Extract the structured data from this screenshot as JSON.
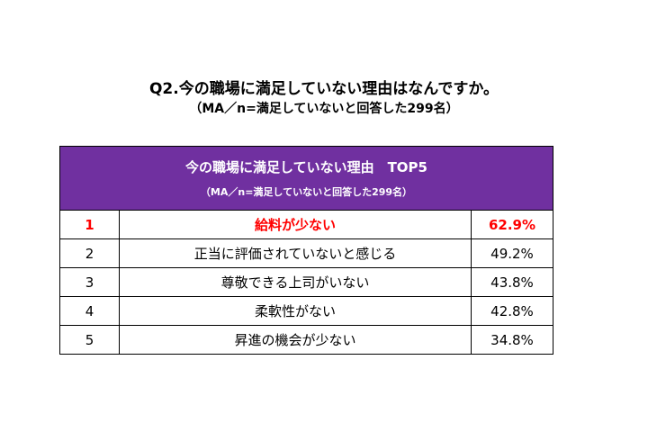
{
  "question": {
    "title": "Q2.今の職場に満足していない理由はなんですか。",
    "subtitle": "（MA／n=満足していないと回答した299名）"
  },
  "table": {
    "header_title": "今の職場に満足していない理由　TOP5",
    "header_subtitle": "（MA／n=満足していないと回答した299名）",
    "header_color": "#7030a0",
    "highlight_color": "#ff0000",
    "rows": [
      {
        "rank": "1",
        "reason": "給料が少ない",
        "percent": "62.9%"
      },
      {
        "rank": "2",
        "reason": "正当に評価されていないと感じる",
        "percent": "49.2%"
      },
      {
        "rank": "3",
        "reason": "尊敬できる上司がいない",
        "percent": "43.8%"
      },
      {
        "rank": "4",
        "reason": "柔軟性がない",
        "percent": "42.8%"
      },
      {
        "rank": "5",
        "reason": "昇進の機会が少ない",
        "percent": "34.8%"
      }
    ]
  }
}
